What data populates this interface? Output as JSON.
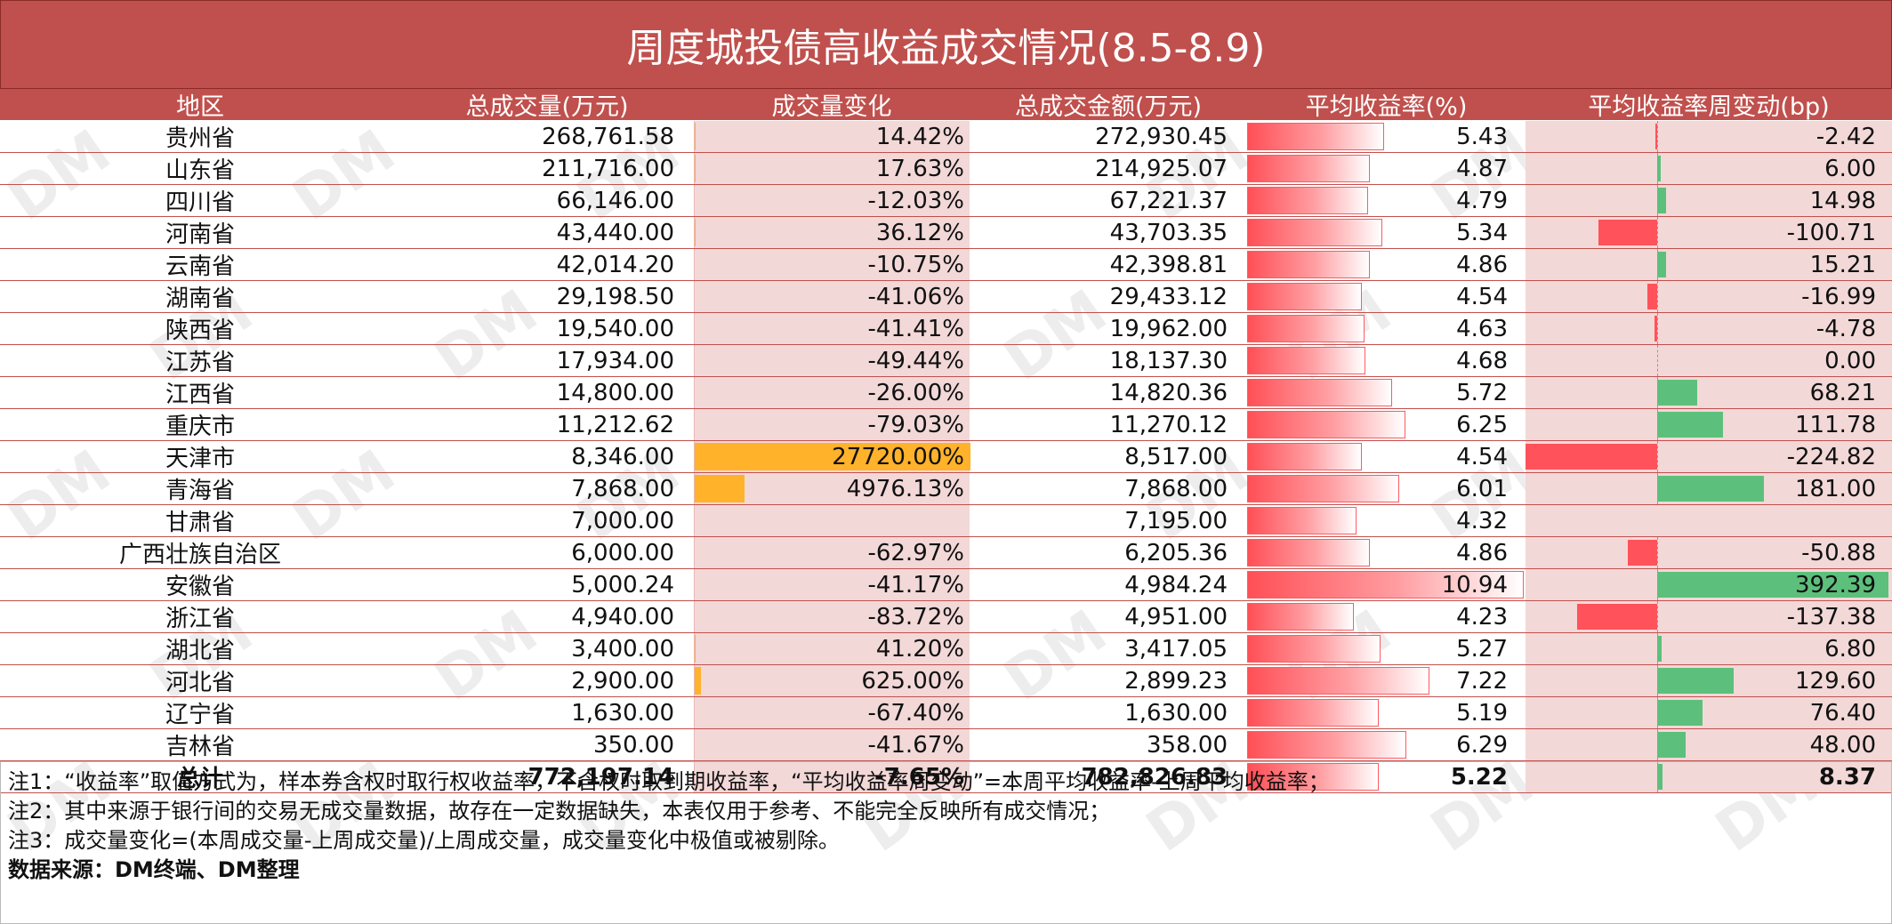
{
  "title": "周度城投债高收益成交情况(8.5-8.9)",
  "watermark": "DM",
  "headers": {
    "region": "地区",
    "volume": "总成交量(万元)",
    "volume_change": "成交量变化",
    "amount": "总成交金额(万元)",
    "avg_yield": "平均收益率(%)",
    "yield_weekly_change": "平均收益率周变动(bp)"
  },
  "colors": {
    "header_bg": "#c0504d",
    "change_bar": "#ffb22a",
    "yield_bar": "#ff4f56",
    "negative_bar": "#ff525a",
    "positive_bar": "#5cc07c"
  },
  "rows": [
    {
      "region": "贵州省",
      "volume": "268,761.58",
      "volume_change": "14.42%",
      "change_value": 14.42,
      "amount": "272,930.45",
      "avg_yield": "5.43",
      "yield_value": 5.43,
      "yield_change": "-2.42",
      "yield_change_value": -2.42
    },
    {
      "region": "山东省",
      "volume": "211,716.00",
      "volume_change": "17.63%",
      "change_value": 17.63,
      "amount": "214,925.07",
      "avg_yield": "4.87",
      "yield_value": 4.87,
      "yield_change": "6.00",
      "yield_change_value": 6.0
    },
    {
      "region": "四川省",
      "volume": "66,146.00",
      "volume_change": "-12.03%",
      "change_value": -12.03,
      "amount": "67,221.37",
      "avg_yield": "4.79",
      "yield_value": 4.79,
      "yield_change": "14.98",
      "yield_change_value": 14.98
    },
    {
      "region": "河南省",
      "volume": "43,440.00",
      "volume_change": "36.12%",
      "change_value": 36.12,
      "amount": "43,703.35",
      "avg_yield": "5.34",
      "yield_value": 5.34,
      "yield_change": "-100.71",
      "yield_change_value": -100.71
    },
    {
      "region": "云南省",
      "volume": "42,014.20",
      "volume_change": "-10.75%",
      "change_value": -10.75,
      "amount": "42,398.81",
      "avg_yield": "4.86",
      "yield_value": 4.86,
      "yield_change": "15.21",
      "yield_change_value": 15.21
    },
    {
      "region": "湖南省",
      "volume": "29,198.50",
      "volume_change": "-41.06%",
      "change_value": -41.06,
      "amount": "29,433.12",
      "avg_yield": "4.54",
      "yield_value": 4.54,
      "yield_change": "-16.99",
      "yield_change_value": -16.99
    },
    {
      "region": "陕西省",
      "volume": "19,540.00",
      "volume_change": "-41.41%",
      "change_value": -41.41,
      "amount": "19,962.00",
      "avg_yield": "4.63",
      "yield_value": 4.63,
      "yield_change": "-4.78",
      "yield_change_value": -4.78
    },
    {
      "region": "江苏省",
      "volume": "17,934.00",
      "volume_change": "-49.44%",
      "change_value": -49.44,
      "amount": "18,137.30",
      "avg_yield": "4.68",
      "yield_value": 4.68,
      "yield_change": "0.00",
      "yield_change_value": 0.0
    },
    {
      "region": "江西省",
      "volume": "14,800.00",
      "volume_change": "-26.00%",
      "change_value": -26.0,
      "amount": "14,820.36",
      "avg_yield": "5.72",
      "yield_value": 5.72,
      "yield_change": "68.21",
      "yield_change_value": 68.21
    },
    {
      "region": "重庆市",
      "volume": "11,212.62",
      "volume_change": "-79.03%",
      "change_value": -79.03,
      "amount": "11,270.12",
      "avg_yield": "6.25",
      "yield_value": 6.25,
      "yield_change": "111.78",
      "yield_change_value": 111.78
    },
    {
      "region": "天津市",
      "volume": "8,346.00",
      "volume_change": "27720.00%",
      "change_value": 27720.0,
      "amount": "8,517.00",
      "avg_yield": "4.54",
      "yield_value": 4.54,
      "yield_change": "-224.82",
      "yield_change_value": -224.82
    },
    {
      "region": "青海省",
      "volume": "7,868.00",
      "volume_change": "4976.13%",
      "change_value": 4976.13,
      "amount": "7,868.00",
      "avg_yield": "6.01",
      "yield_value": 6.01,
      "yield_change": "181.00",
      "yield_change_value": 181.0
    },
    {
      "region": "甘肃省",
      "volume": "7,000.00",
      "volume_change": "",
      "change_value": null,
      "amount": "7,195.00",
      "avg_yield": "4.32",
      "yield_value": 4.32,
      "yield_change": "",
      "yield_change_value": null
    },
    {
      "region": "广西壮族自治区",
      "volume": "6,000.00",
      "volume_change": "-62.97%",
      "change_value": -62.97,
      "amount": "6,205.36",
      "avg_yield": "4.86",
      "yield_value": 4.86,
      "yield_change": "-50.88",
      "yield_change_value": -50.88
    },
    {
      "region": "安徽省",
      "volume": "5,000.24",
      "volume_change": "-41.17%",
      "change_value": -41.17,
      "amount": "4,984.24",
      "avg_yield": "10.94",
      "yield_value": 10.94,
      "yield_change": "392.39",
      "yield_change_value": 392.39
    },
    {
      "region": "浙江省",
      "volume": "4,940.00",
      "volume_change": "-83.72%",
      "change_value": -83.72,
      "amount": "4,951.00",
      "avg_yield": "4.23",
      "yield_value": 4.23,
      "yield_change": "-137.38",
      "yield_change_value": -137.38
    },
    {
      "region": "湖北省",
      "volume": "3,400.00",
      "volume_change": "41.20%",
      "change_value": 41.2,
      "amount": "3,417.05",
      "avg_yield": "5.27",
      "yield_value": 5.27,
      "yield_change": "6.80",
      "yield_change_value": 6.8
    },
    {
      "region": "河北省",
      "volume": "2,900.00",
      "volume_change": "625.00%",
      "change_value": 625.0,
      "amount": "2,899.23",
      "avg_yield": "7.22",
      "yield_value": 7.22,
      "yield_change": "129.60",
      "yield_change_value": 129.6
    },
    {
      "region": "辽宁省",
      "volume": "1,630.00",
      "volume_change": "-67.40%",
      "change_value": -67.4,
      "amount": "1,630.00",
      "avg_yield": "5.19",
      "yield_value": 5.19,
      "yield_change": "76.40",
      "yield_change_value": 76.4
    },
    {
      "region": "吉林省",
      "volume": "350.00",
      "volume_change": "-41.67%",
      "change_value": -41.67,
      "amount": "358.00",
      "avg_yield": "6.29",
      "yield_value": 6.29,
      "yield_change": "48.00",
      "yield_change_value": 48.0
    }
  ],
  "total": {
    "region": "总计",
    "volume": "772,197.14",
    "volume_change": "-7.65%",
    "change_value": -7.65,
    "amount": "782,826.83",
    "avg_yield": "5.22",
    "yield_value": 5.22,
    "yield_change": "8.37",
    "yield_change_value": 8.37
  },
  "notes": [
    "注1：“收益率”取值方式为，样本券含权时取行权收益率，不含权时取到期收益率，“平均收益率周变动”=本周平均收益率-上周平均收益率；",
    "注2：其中来源于银行间的交易无成交量数据，故存在一定数据缺失，本表仅用于参考、不能完全反映所有成交情况；",
    "注3：成交量变化=(本周成交量-上周成交量)/上周成交量，成交量变化中极值或被剔除。"
  ],
  "source": "数据来源：DM终端、DM整理"
}
